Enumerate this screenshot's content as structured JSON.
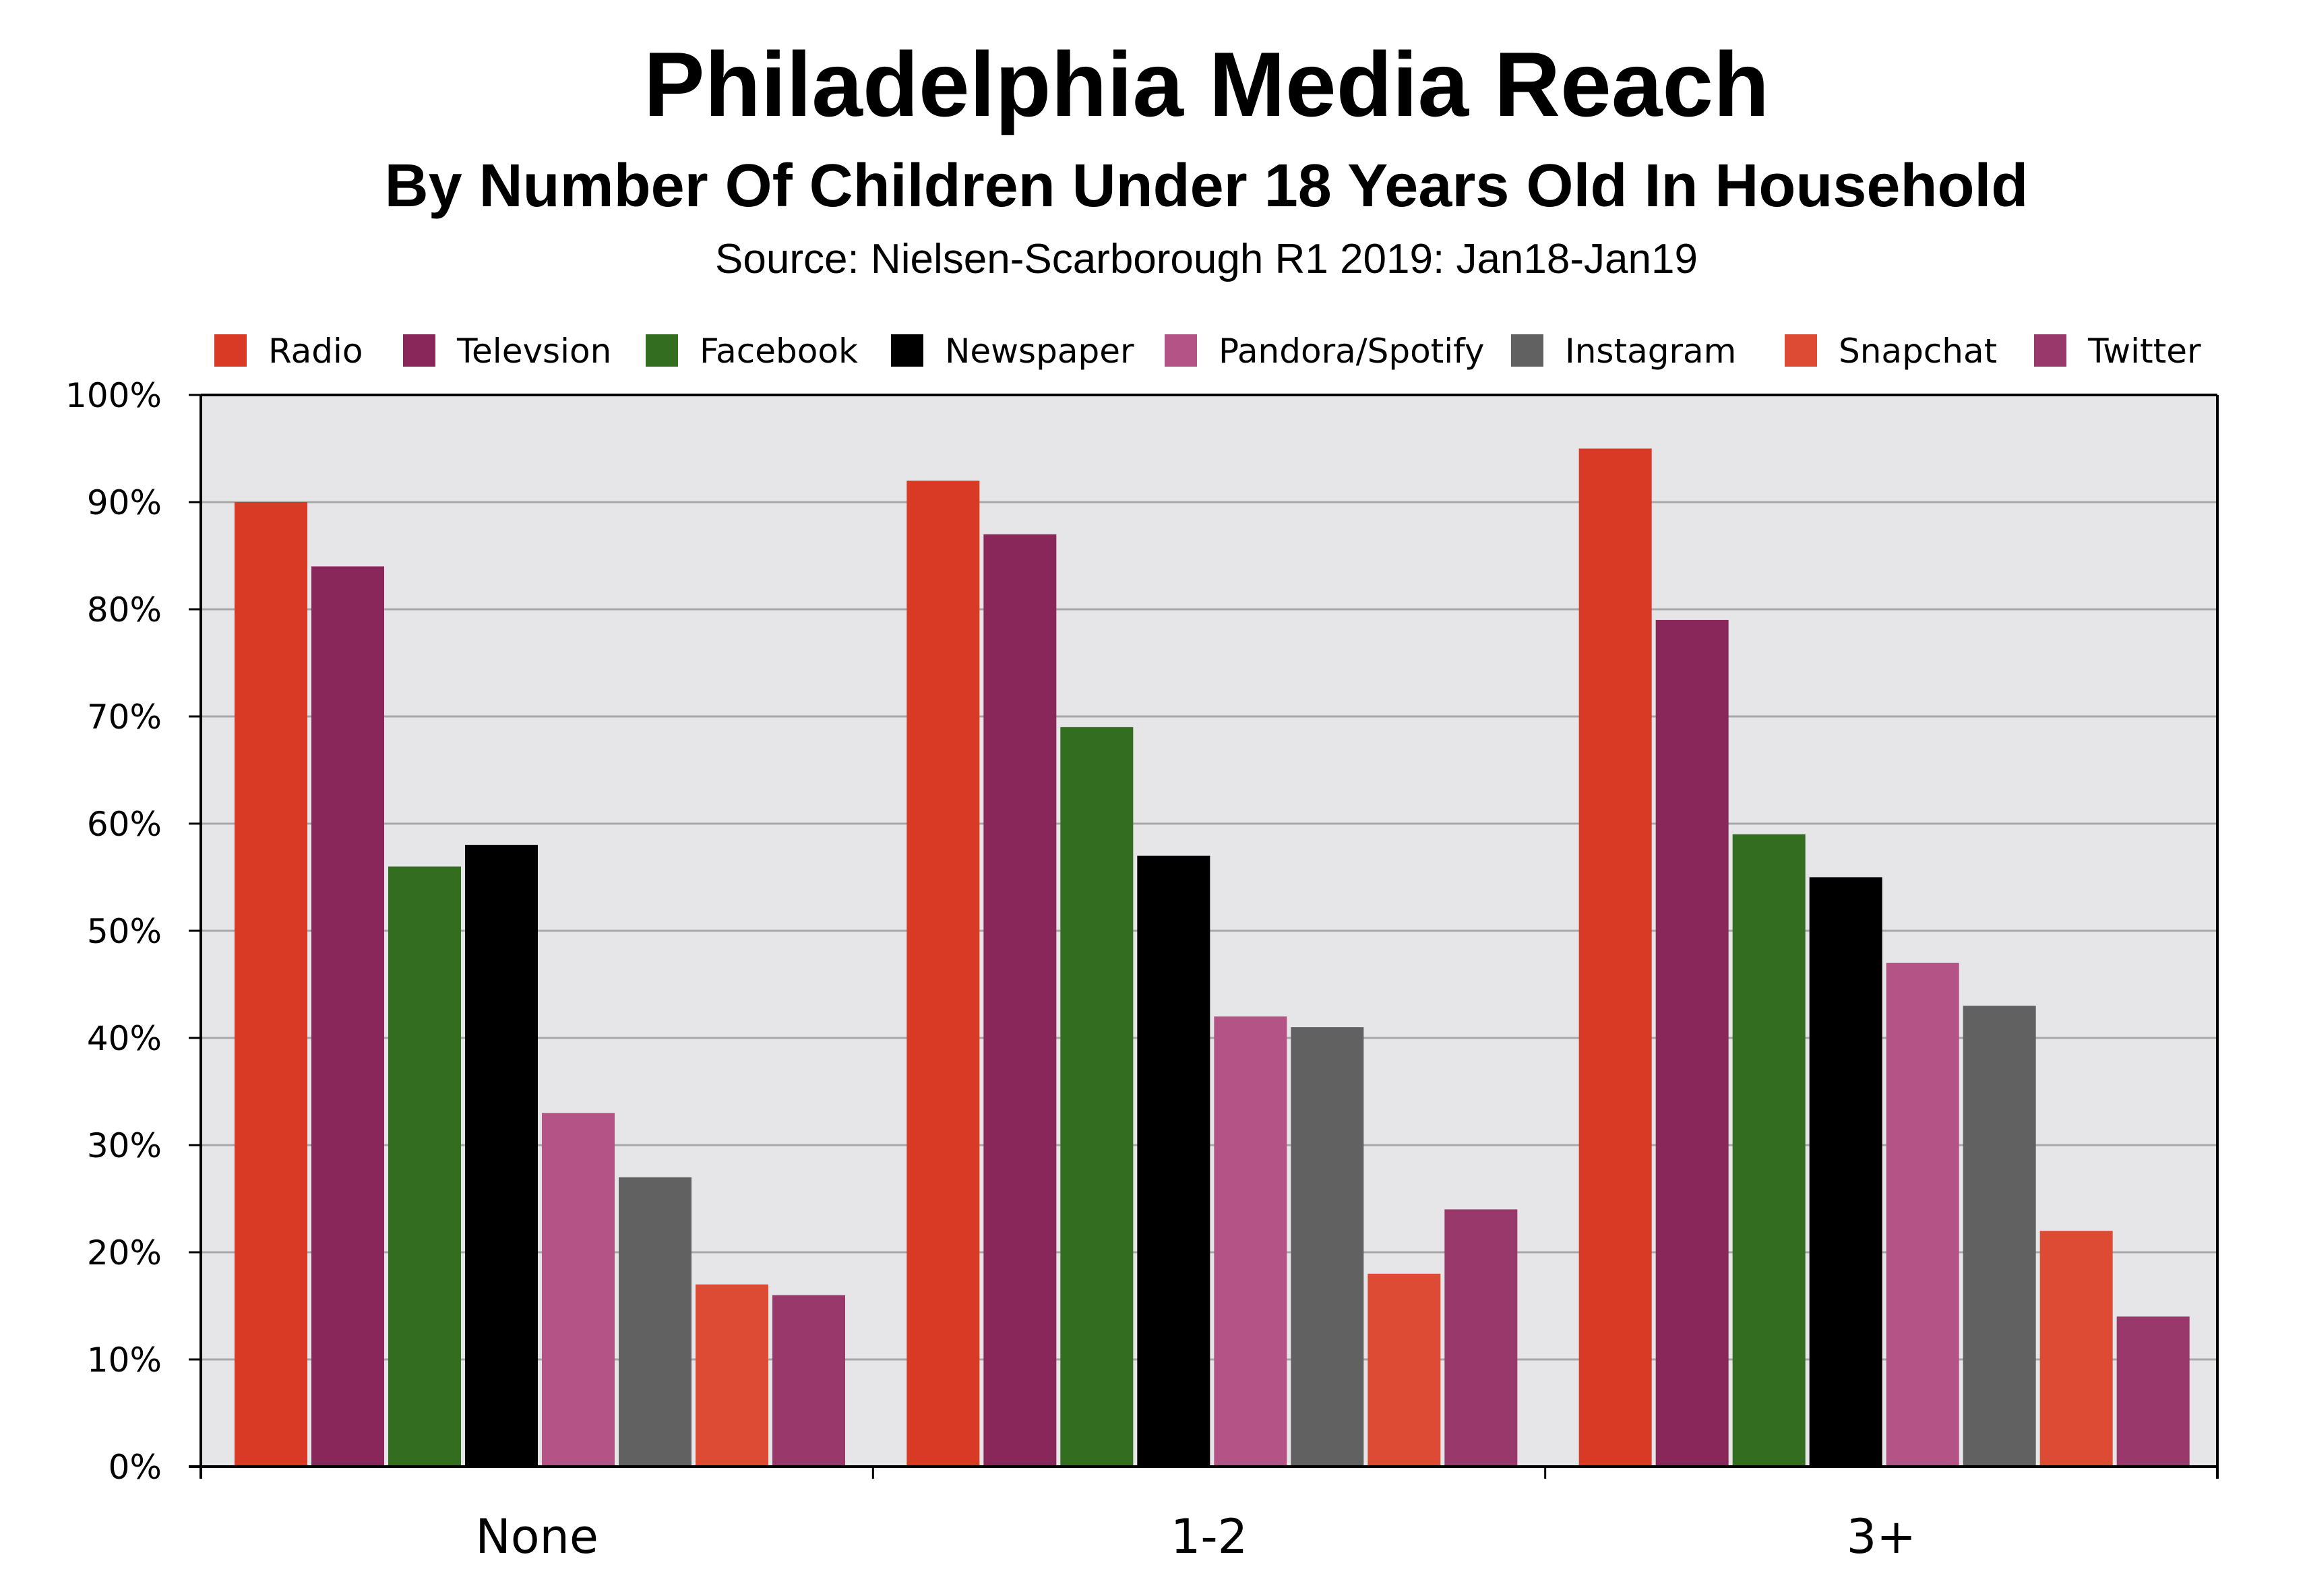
{
  "chart_data": {
    "type": "bar",
    "title": "Philadelphia Media Reach",
    "subtitle": "By Number Of Children Under 18 Years Old In Household",
    "source": "Source: Nielsen-Scarborough R1 2019: Jan18-Jan19",
    "categories": [
      "None",
      "1-2",
      "3+"
    ],
    "series": [
      {
        "name": "Radio",
        "color": "#d93a26",
        "values": [
          90,
          92,
          95
        ]
      },
      {
        "name": "Televsion",
        "color": "#8a275a",
        "values": [
          84,
          87,
          79
        ]
      },
      {
        "name": "Facebook",
        "color": "#336e20",
        "values": [
          56,
          69,
          59
        ]
      },
      {
        "name": "Newspaper",
        "color": "#000000",
        "values": [
          58,
          57,
          55
        ]
      },
      {
        "name": "Pandora/Spotify",
        "color": "#b45385",
        "values": [
          33,
          42,
          47
        ]
      },
      {
        "name": "Instagram",
        "color": "#616161",
        "values": [
          27,
          41,
          43
        ]
      },
      {
        "name": "Snapchat",
        "color": "#dd4b35",
        "values": [
          17,
          18,
          22
        ]
      },
      {
        "name": "Twitter",
        "color": "#98386b",
        "values": [
          16,
          24,
          14
        ]
      }
    ],
    "yticks": [
      "0%",
      "10%",
      "20%",
      "30%",
      "40%",
      "50%",
      "60%",
      "70%",
      "80%",
      "90%",
      "100%"
    ],
    "ylim": [
      0,
      100
    ],
    "grid": true,
    "legend_position": "top",
    "plot_background": "#e6e5e8",
    "gridline_color": "#a8a8a8"
  }
}
